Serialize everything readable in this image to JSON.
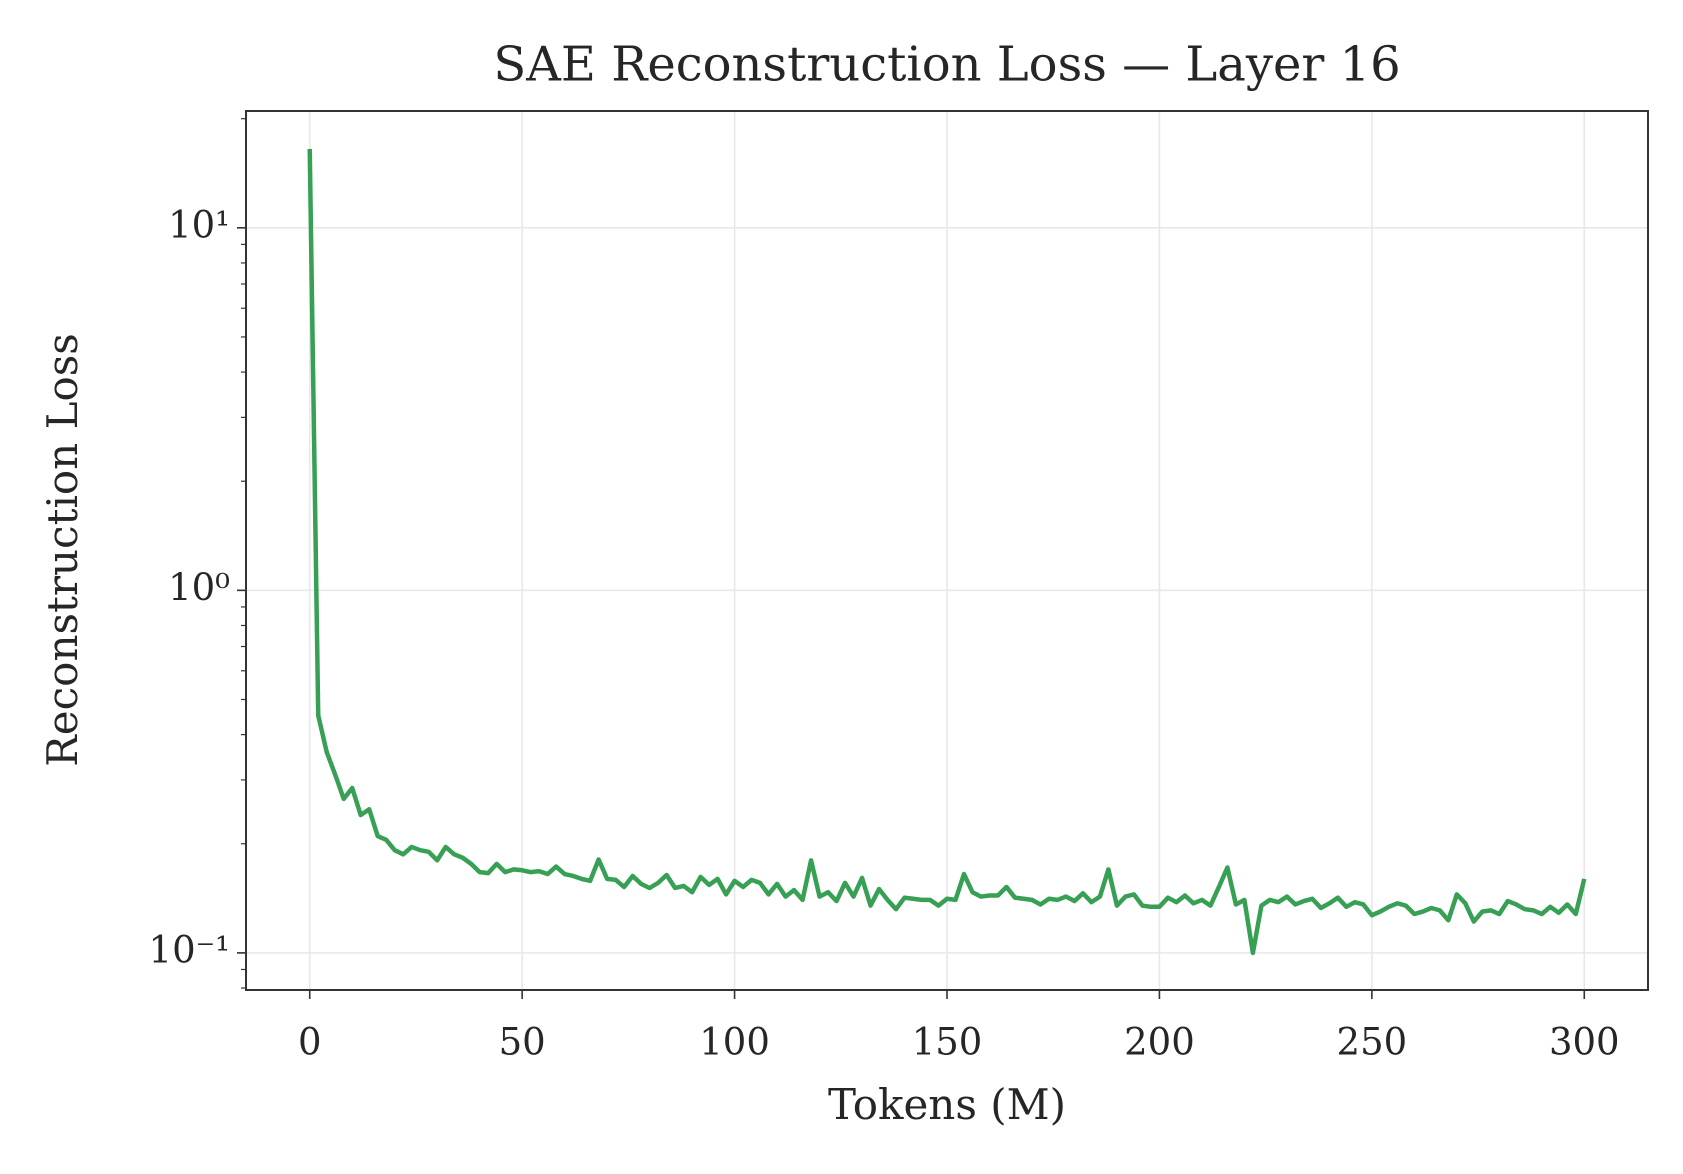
{
  "chart_data": {
    "type": "line",
    "title": "SAE Reconstruction Loss — Layer 16",
    "x_label": "Tokens (M)",
    "y_label": "Reconstruction Loss",
    "y_scale": "log",
    "grid": true,
    "xlim": [
      -15,
      315
    ],
    "xticks": [
      0,
      50,
      100,
      150,
      200,
      250,
      300
    ],
    "ylim": [
      0.079,
      21
    ],
    "yticks": [
      {
        "value": 0.1,
        "label": "10⁻¹"
      },
      {
        "value": 1,
        "label": "10⁰"
      },
      {
        "value": 10,
        "label": "10¹"
      }
    ],
    "x": [
      0,
      2,
      4,
      6,
      8,
      10,
      12,
      14,
      16,
      18,
      20,
      22,
      24,
      26,
      28,
      30,
      32,
      34,
      36,
      38,
      40,
      42,
      44,
      46,
      48,
      50,
      52,
      54,
      56,
      58,
      60,
      62,
      64,
      66,
      68,
      70,
      72,
      74,
      76,
      78,
      80,
      82,
      84,
      86,
      88,
      90,
      92,
      94,
      96,
      98,
      100,
      102,
      104,
      106,
      108,
      110,
      112,
      114,
      116,
      118,
      120,
      122,
      124,
      126,
      128,
      130,
      132,
      134,
      136,
      138,
      140,
      142,
      144,
      146,
      148,
      150,
      152,
      154,
      156,
      158,
      160,
      162,
      164,
      166,
      168,
      170,
      172,
      174,
      176,
      178,
      180,
      182,
      184,
      186,
      188,
      190,
      192,
      194,
      196,
      198,
      200,
      202,
      204,
      206,
      208,
      210,
      212,
      214,
      216,
      218,
      220,
      222,
      224,
      226,
      228,
      230,
      232,
      234,
      236,
      238,
      240,
      242,
      244,
      246,
      248,
      250,
      252,
      254,
      256,
      258,
      260,
      262,
      264,
      266,
      268,
      270,
      272,
      274,
      276,
      278,
      280,
      282,
      284,
      286,
      288,
      290,
      292,
      294,
      296,
      298,
      300
    ],
    "series": [
      {
        "name": "Reconstruction Loss",
        "color": "#38a055",
        "values": [
          16.5,
          0.452,
          0.358,
          0.31,
          0.266,
          0.285,
          0.24,
          0.249,
          0.21,
          0.205,
          0.192,
          0.187,
          0.196,
          0.192,
          0.19,
          0.18,
          0.196,
          0.187,
          0.183,
          0.176,
          0.167,
          0.166,
          0.176,
          0.167,
          0.17,
          0.169,
          0.167,
          0.168,
          0.165,
          0.173,
          0.165,
          0.163,
          0.16,
          0.158,
          0.181,
          0.16,
          0.159,
          0.152,
          0.163,
          0.155,
          0.151,
          0.156,
          0.164,
          0.151,
          0.153,
          0.147,
          0.162,
          0.154,
          0.16,
          0.145,
          0.158,
          0.152,
          0.159,
          0.156,
          0.145,
          0.155,
          0.143,
          0.149,
          0.14,
          0.18,
          0.143,
          0.147,
          0.139,
          0.156,
          0.143,
          0.161,
          0.135,
          0.15,
          0.14,
          0.132,
          0.142,
          0.141,
          0.14,
          0.14,
          0.135,
          0.141,
          0.14,
          0.165,
          0.147,
          0.143,
          0.144,
          0.144,
          0.152,
          0.142,
          0.141,
          0.14,
          0.136,
          0.141,
          0.14,
          0.143,
          0.139,
          0.146,
          0.138,
          0.143,
          0.17,
          0.135,
          0.143,
          0.145,
          0.135,
          0.134,
          0.134,
          0.142,
          0.138,
          0.144,
          0.137,
          0.14,
          0.135,
          0.152,
          0.172,
          0.136,
          0.14,
          0.1,
          0.135,
          0.14,
          0.138,
          0.143,
          0.136,
          0.139,
          0.141,
          0.133,
          0.137,
          0.142,
          0.134,
          0.138,
          0.136,
          0.127,
          0.13,
          0.134,
          0.137,
          0.135,
          0.128,
          0.13,
          0.133,
          0.131,
          0.123,
          0.145,
          0.137,
          0.122,
          0.13,
          0.131,
          0.128,
          0.139,
          0.136,
          0.132,
          0.131,
          0.128,
          0.134,
          0.129,
          0.136,
          0.128,
          0.16
        ]
      }
    ]
  }
}
